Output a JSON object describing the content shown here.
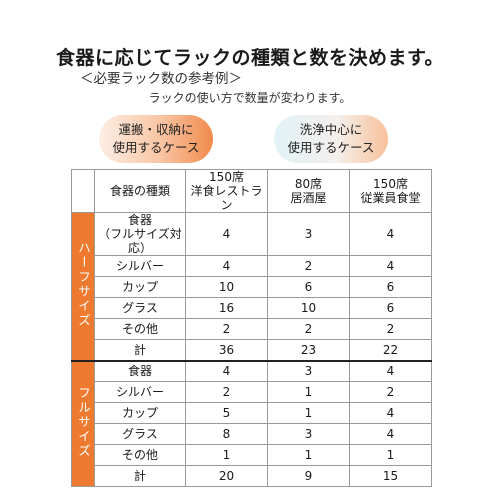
{
  "title": "食器に応じてラックの種類と数を決めます。",
  "subtitle": "＜必要ラック数の参考例＞",
  "note": "ラックの使い方で数量が変わります。",
  "pills": {
    "orange": "運搬・収納に\n使用するケース",
    "blue": "洗浄中心に\n使用するケース"
  },
  "colors": {
    "accent_orange": "#ee7a2f"
  },
  "table": {
    "header": {
      "item": "食器の種類",
      "col1": "150席\n洋食レストラン",
      "col2": "80席\n居酒屋",
      "col3": "150席\n従業員食堂"
    },
    "half_label": "ハーフサイズ",
    "full_label": "フルサイズ",
    "half_rows": [
      {
        "item": "食器\n（フルサイズ対応）",
        "v1": "4",
        "v2": "3",
        "v3": "4"
      },
      {
        "item": "シルバー",
        "v1": "4",
        "v2": "2",
        "v3": "4"
      },
      {
        "item": "カップ",
        "v1": "10",
        "v2": "6",
        "v3": "6"
      },
      {
        "item": "グラス",
        "v1": "16",
        "v2": "10",
        "v3": "6"
      },
      {
        "item": "その他",
        "v1": "2",
        "v2": "2",
        "v3": "2"
      },
      {
        "item": "計",
        "v1": "36",
        "v2": "23",
        "v3": "22"
      }
    ],
    "full_rows": [
      {
        "item": "食器",
        "v1": "4",
        "v2": "3",
        "v3": "4"
      },
      {
        "item": "シルバー",
        "v1": "2",
        "v2": "1",
        "v3": "2"
      },
      {
        "item": "カップ",
        "v1": "5",
        "v2": "1",
        "v3": "4"
      },
      {
        "item": "グラス",
        "v1": "8",
        "v2": "3",
        "v3": "4"
      },
      {
        "item": "その他",
        "v1": "1",
        "v2": "1",
        "v3": "1"
      },
      {
        "item": "計",
        "v1": "20",
        "v2": "9",
        "v3": "15"
      }
    ]
  }
}
